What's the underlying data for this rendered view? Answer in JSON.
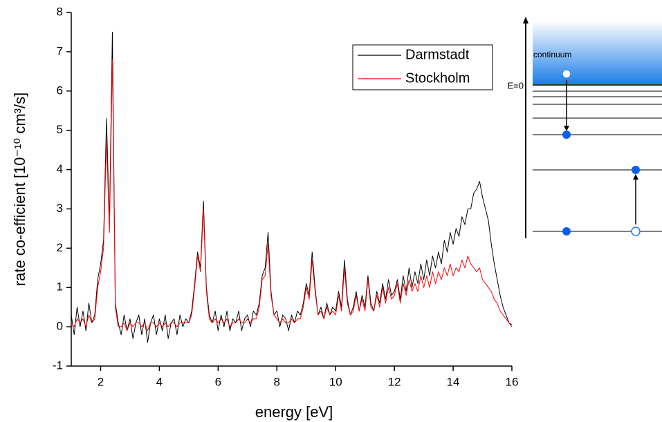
{
  "chart_data": {
    "type": "line",
    "xlabel": "energy [eV]",
    "ylabel": "rate co-efficient [10⁻¹⁰ cm³/s]",
    "annotations": [
      "continuum",
      "E=0"
    ],
    "legend": "upper right",
    "xlim": [
      1,
      16
    ],
    "xticks": [
      2,
      4,
      6,
      8,
      10,
      12,
      14,
      16
    ],
    "ylim": [
      -1,
      8
    ],
    "yticks": [
      -1,
      0,
      1,
      2,
      3,
      4,
      5,
      6,
      7,
      8
    ],
    "x": [
      1,
      1.1,
      1.2,
      1.3,
      1.4,
      1.5,
      1.6,
      1.7,
      1.8,
      1.9,
      2,
      2.1,
      2.2,
      2.3,
      2.4,
      2.5,
      2.6,
      2.7,
      2.8,
      2.9,
      3,
      3.1,
      3.2,
      3.3,
      3.4,
      3.5,
      3.6,
      3.7,
      3.8,
      3.9,
      4,
      4.1,
      4.2,
      4.3,
      4.4,
      4.5,
      4.6,
      4.7,
      4.8,
      4.9,
      5,
      5.1,
      5.2,
      5.3,
      5.4,
      5.5,
      5.6,
      5.7,
      5.8,
      5.9,
      6,
      6.1,
      6.2,
      6.3,
      6.4,
      6.5,
      6.6,
      6.7,
      6.8,
      6.9,
      7,
      7.1,
      7.2,
      7.3,
      7.4,
      7.5,
      7.6,
      7.7,
      7.8,
      7.9,
      8,
      8.1,
      8.2,
      8.3,
      8.4,
      8.5,
      8.6,
      8.7,
      8.8,
      8.9,
      9,
      9.1,
      9.2,
      9.3,
      9.4,
      9.5,
      9.6,
      9.7,
      9.8,
      9.9,
      10,
      10.1,
      10.2,
      10.3,
      10.4,
      10.5,
      10.6,
      10.7,
      10.8,
      10.9,
      11,
      11.1,
      11.2,
      11.3,
      11.4,
      11.5,
      11.6,
      11.7,
      11.8,
      11.9,
      12,
      12.1,
      12.2,
      12.3,
      12.4,
      12.5,
      12.6,
      12.7,
      12.8,
      12.9,
      13,
      13.1,
      13.2,
      13.3,
      13.4,
      13.5,
      13.6,
      13.7,
      13.8,
      13.9,
      14,
      14.1,
      14.2,
      14.3,
      14.4,
      14.5,
      14.6,
      14.7,
      14.8,
      14.9,
      15,
      15.1,
      15.2,
      15.3,
      15.4,
      15.5,
      15.6,
      15.7,
      15.8,
      15.9,
      16
    ],
    "series": [
      {
        "name": "Darmstadt",
        "color": "#000000",
        "values": [
          0.3,
          -0.2,
          0.5,
          0.0,
          0.4,
          -0.1,
          0.6,
          0.1,
          0.3,
          1.2,
          1.6,
          2.2,
          5.3,
          2.6,
          7.5,
          0.6,
          0.1,
          -0.2,
          0.3,
          -0.1,
          0.2,
          -0.3,
          0.1,
          0.3,
          -0.2,
          0.2,
          -0.4,
          0.1,
          0.3,
          -0.2,
          0.2,
          -0.1,
          0.3,
          -0.3,
          0.1,
          0.2,
          -0.2,
          0.3,
          0.0,
          0.2,
          0.1,
          0.4,
          1.1,
          1.9,
          1.5,
          3.2,
          1.0,
          0.3,
          0.1,
          0.4,
          -0.1,
          0.3,
          0.0,
          0.4,
          -0.1,
          0.2,
          0.1,
          0.4,
          -0.1,
          0.2,
          0.3,
          0.0,
          0.4,
          0.3,
          0.6,
          1.3,
          1.5,
          2.4,
          0.9,
          0.3,
          0.4,
          0.0,
          0.3,
          0.2,
          -0.1,
          0.3,
          0.1,
          0.4,
          0.3,
          0.6,
          1.1,
          0.8,
          1.9,
          1.0,
          0.3,
          0.5,
          0.2,
          0.6,
          0.3,
          0.5,
          0.4,
          0.9,
          0.5,
          1.7,
          0.7,
          0.3,
          0.5,
          0.9,
          0.4,
          0.8,
          0.5,
          1.3,
          0.6,
          0.4,
          0.9,
          0.6,
          1.1,
          0.7,
          1.2,
          0.8,
          0.9,
          1.2,
          0.7,
          1.3,
          0.9,
          1.5,
          1.0,
          1.4,
          1.1,
          1.6,
          1.2,
          1.7,
          1.3,
          1.8,
          1.5,
          1.9,
          1.6,
          2.2,
          1.9,
          2.4,
          2.1,
          2.5,
          2.3,
          2.8,
          2.6,
          3.0,
          3.0,
          3.4,
          3.5,
          3.7,
          3.3,
          3.0,
          2.7,
          2.1,
          1.6,
          1.2,
          0.8,
          0.5,
          0.3,
          0.1,
          0.05
        ]
      },
      {
        "name": "Stockholm",
        "color": "#ff0000",
        "values": [
          0.1,
          0.0,
          0.2,
          0.1,
          0.2,
          0.0,
          0.3,
          0.1,
          0.2,
          1.0,
          1.4,
          2.0,
          4.8,
          2.4,
          6.8,
          0.5,
          0.0,
          0.0,
          0.1,
          -0.1,
          0.1,
          0.0,
          0.1,
          0.1,
          0.0,
          0.1,
          -0.1,
          0.1,
          0.1,
          0.0,
          0.1,
          0.0,
          0.1,
          0.0,
          0.1,
          0.1,
          0.0,
          0.1,
          0.1,
          0.1,
          0.1,
          0.3,
          1.0,
          1.8,
          1.4,
          3.0,
          0.9,
          0.2,
          0.1,
          0.2,
          0.1,
          0.2,
          0.1,
          0.2,
          0.0,
          0.1,
          0.1,
          0.2,
          0.1,
          0.1,
          0.2,
          0.1,
          0.2,
          0.2,
          0.5,
          1.2,
          1.3,
          2.1,
          0.8,
          0.3,
          0.2,
          0.1,
          0.2,
          0.1,
          0.1,
          0.2,
          0.1,
          0.2,
          0.2,
          0.5,
          1.0,
          0.7,
          1.7,
          0.9,
          0.3,
          0.4,
          0.2,
          0.5,
          0.3,
          0.4,
          0.3,
          0.8,
          0.4,
          1.5,
          0.6,
          0.3,
          0.4,
          0.8,
          0.4,
          0.7,
          0.4,
          1.2,
          0.5,
          0.4,
          0.8,
          0.5,
          1.0,
          0.6,
          1.0,
          0.7,
          0.8,
          1.1,
          0.6,
          1.1,
          0.8,
          1.2,
          0.9,
          1.1,
          0.9,
          1.3,
          1.0,
          1.3,
          1.0,
          1.4,
          1.1,
          1.4,
          1.2,
          1.5,
          1.3,
          1.6,
          1.3,
          1.5,
          1.4,
          1.7,
          1.5,
          1.8,
          1.6,
          1.5,
          1.4,
          1.5,
          1.2,
          1.1,
          1.0,
          0.9,
          0.7,
          0.6,
          0.4,
          0.3,
          0.2,
          0.1,
          0.0
        ]
      }
    ]
  }
}
